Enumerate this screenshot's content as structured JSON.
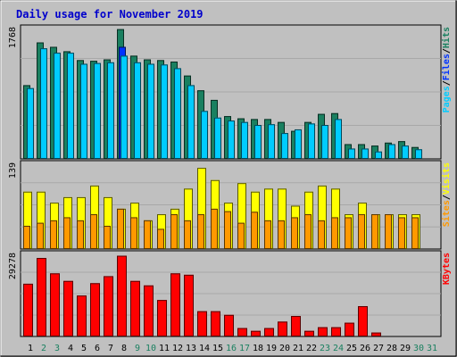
{
  "chart_data": [
    {
      "type": "bar",
      "title": "Daily usage for November 2019",
      "categories": [
        "1",
        "2",
        "3",
        "4",
        "5",
        "6",
        "7",
        "8",
        "9",
        "10",
        "11",
        "12",
        "13",
        "14",
        "15",
        "16",
        "17",
        "18",
        "19",
        "20",
        "21",
        "22",
        "23",
        "24",
        "25",
        "26",
        "27",
        "28",
        "29",
        "30",
        "31"
      ],
      "ymax_label": "1768",
      "ylabel_parts": [
        "Pages",
        "Files",
        "Hits"
      ],
      "ylim": [
        0,
        1768
      ],
      "series": [
        {
          "name": "Hits",
          "color": "#1a8060",
          "values": [
            1000,
            1580,
            1520,
            1460,
            1340,
            1330,
            1350,
            1760,
            1400,
            1350,
            1340,
            1320,
            1130,
            930,
            800,
            580,
            550,
            540,
            540,
            500,
            380,
            500,
            610,
            620,
            200,
            200,
            180,
            220,
            240,
            160,
            0
          ]
        },
        {
          "name": "Files",
          "color": "#0033ff",
          "values": [
            0,
            0,
            0,
            0,
            0,
            0,
            0,
            1520,
            0,
            0,
            0,
            0,
            0,
            0,
            0,
            0,
            0,
            0,
            0,
            0,
            0,
            0,
            0,
            0,
            0,
            0,
            0,
            0,
            0,
            0,
            0
          ]
        },
        {
          "name": "Pages",
          "color": "#00ccff",
          "values": [
            960,
            1500,
            1440,
            1440,
            1290,
            1300,
            1310,
            1400,
            1310,
            1290,
            1280,
            1230,
            1000,
            650,
            560,
            520,
            500,
            460,
            470,
            350,
            400,
            480,
            460,
            540,
            140,
            140,
            100,
            200,
            180,
            130,
            0
          ]
        }
      ]
    },
    {
      "type": "bar",
      "categories": [
        "1",
        "2",
        "3",
        "4",
        "5",
        "6",
        "7",
        "8",
        "9",
        "10",
        "11",
        "12",
        "13",
        "14",
        "15",
        "16",
        "17",
        "18",
        "19",
        "20",
        "21",
        "22",
        "23",
        "24",
        "25",
        "26",
        "27",
        "28",
        "29",
        "30",
        "31"
      ],
      "ymax_label": "139",
      "ylabel_parts": [
        "Sites",
        "Visits"
      ],
      "ylim": [
        0,
        139
      ],
      "series": [
        {
          "name": "Visits",
          "color": "#ffff00",
          "values": [
            94,
            94,
            76,
            85,
            85,
            104,
            85,
            66,
            76,
            47,
            57,
            66,
            99,
            133,
            113,
            76,
            108,
            94,
            99,
            99,
            71,
            94,
            104,
            99,
            57,
            76,
            57,
            57,
            57,
            57,
            0
          ]
        },
        {
          "name": "Sites",
          "color": "#ff9900",
          "values": [
            38,
            43,
            47,
            52,
            47,
            57,
            38,
            66,
            52,
            47,
            33,
            57,
            47,
            57,
            66,
            62,
            43,
            61,
            47,
            47,
            52,
            57,
            47,
            52,
            52,
            57,
            57,
            57,
            52,
            52,
            0
          ]
        }
      ]
    },
    {
      "type": "bar",
      "categories": [
        "1",
        "2",
        "3",
        "4",
        "5",
        "6",
        "7",
        "8",
        "9",
        "10",
        "11",
        "12",
        "13",
        "14",
        "15",
        "16",
        "17",
        "18",
        "19",
        "20",
        "21",
        "22",
        "23",
        "24",
        "25",
        "26",
        "27",
        "28",
        "29",
        "30",
        "31"
      ],
      "ymax_label": "29278",
      "ylabel_parts": [
        "KBytes"
      ],
      "ylim": [
        0,
        29278
      ],
      "series": [
        {
          "name": "KBytes",
          "color": "#ff0000",
          "values": [
            18800,
            28000,
            22500,
            19800,
            14600,
            19000,
            21500,
            28800,
            19800,
            18200,
            13000,
            22500,
            22000,
            9000,
            9000,
            7700,
            3000,
            2000,
            3000,
            5300,
            7300,
            2000,
            3300,
            3300,
            4900,
            10800,
            1400,
            0,
            0,
            0,
            0
          ]
        }
      ]
    }
  ],
  "label_colors": {
    "Pages": "#00ccff",
    "Files": "#0033ff",
    "Hits": "#1a8060",
    "Visits": "#ffff00",
    "Sites": "#ff9900",
    "KBytes": "#ff0000",
    "weekday": "#000000",
    "weekend": "#1a8060"
  },
  "weekend_days": [
    "2",
    "3",
    "9",
    "10",
    "16",
    "17",
    "23",
    "24",
    "30",
    "31"
  ]
}
